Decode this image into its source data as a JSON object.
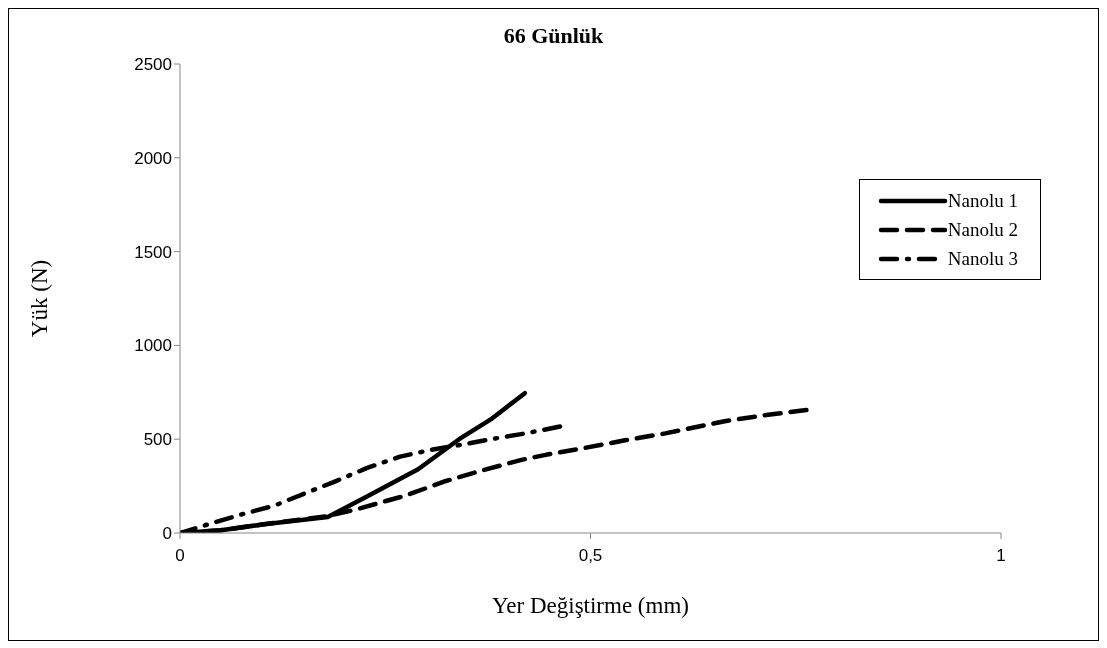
{
  "chart_data": {
    "type": "line",
    "title": "66 Günlük",
    "xlabel": "Yer Değiştirme (mm)",
    "ylabel": "Yük (N)",
    "xlim": [
      0,
      1
    ],
    "xticks": [
      0,
      {
        "value": 0.5,
        "label": "0,5"
      },
      1
    ],
    "ylim": [
      0,
      2500
    ],
    "yticks": [
      0,
      500,
      1000,
      1500,
      2000,
      2500
    ],
    "grid": false,
    "legend": "right",
    "marker": "none",
    "series": [
      {
        "name": "Nanolu 1",
        "color": "#000000",
        "line_style": "solid",
        "x": [
          0,
          0.05,
          0.1,
          0.18,
          0.23,
          0.29,
          0.34,
          0.38,
          0.42
        ],
        "values": [
          0,
          15,
          45,
          85,
          200,
          340,
          500,
          610,
          745
        ]
      },
      {
        "name": "Nanolu 2",
        "color": "#000000",
        "line_style": "dashed",
        "x": [
          0,
          0.05,
          0.1,
          0.18,
          0.218,
          0.275,
          0.323,
          0.37,
          0.416,
          0.447,
          0.495,
          0.542,
          0.591,
          0.64,
          0.665,
          0.714,
          0.764
        ],
        "values": [
          0,
          15,
          45,
          90,
          130,
          200,
          276,
          336,
          390,
          418,
          455,
          494,
          531,
          575,
          597,
          629,
          656
        ]
      },
      {
        "name": "Nanolu 3",
        "color": "#000000",
        "line_style": "dashdot",
        "x": [
          0,
          0.04,
          0.078,
          0.115,
          0.152,
          0.187,
          0.228,
          0.268,
          0.308,
          0.345,
          0.384,
          0.421,
          0.466
        ],
        "values": [
          0,
          54,
          103,
          146,
          211,
          271,
          347,
          407,
          445,
          472,
          504,
          531,
          570
        ]
      }
    ]
  }
}
